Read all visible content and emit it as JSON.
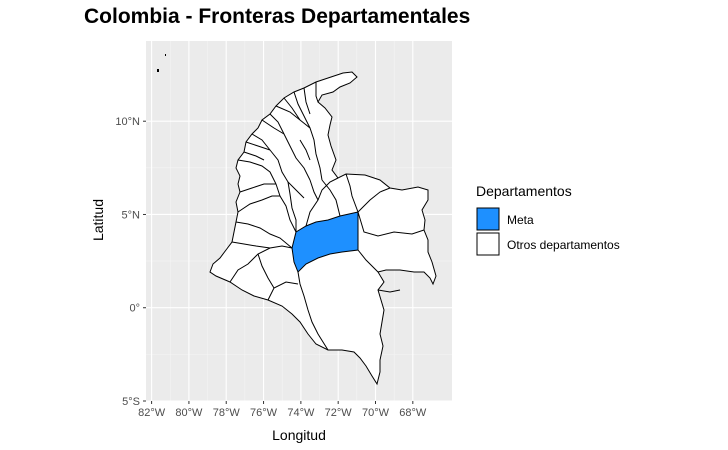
{
  "title": "Colombia - Fronteras Departamentales",
  "colors": {
    "panel_background": "#ebebeb",
    "grid": "#ffffff",
    "highlight_fill": "#1e90ff",
    "other_fill": "#ffffff",
    "border": "#000000"
  },
  "chart_data": {
    "type": "map",
    "title": "Colombia - Fronteras Departamentales",
    "xlabel": "Longitud",
    "ylabel": "Latitud",
    "x_ticks": [
      {
        "value": -82,
        "label": "82°W"
      },
      {
        "value": -80,
        "label": "80°W"
      },
      {
        "value": -78,
        "label": "78°W"
      },
      {
        "value": -76,
        "label": "76°W"
      },
      {
        "value": -74,
        "label": "74°W"
      },
      {
        "value": -72,
        "label": "72°W"
      },
      {
        "value": -70,
        "label": "70°W"
      },
      {
        "value": -68,
        "label": "68°W"
      }
    ],
    "y_ticks": [
      {
        "value": 10,
        "label": "10°N"
      },
      {
        "value": 5,
        "label": "5°N"
      },
      {
        "value": 0,
        "label": "0°"
      },
      {
        "value": -5,
        "label": "5°S"
      }
    ],
    "xlim": [
      -82.3,
      -65.9
    ],
    "ylim": [
      -5.0,
      14.3
    ],
    "grid": true,
    "legend": {
      "title": "Departamentos",
      "position": "right",
      "entries": [
        {
          "label": "Meta",
          "fill": "#1e90ff"
        },
        {
          "label": "Otros departamentos",
          "fill": "#ffffff"
        }
      ]
    },
    "highlighted_department": "Meta"
  }
}
